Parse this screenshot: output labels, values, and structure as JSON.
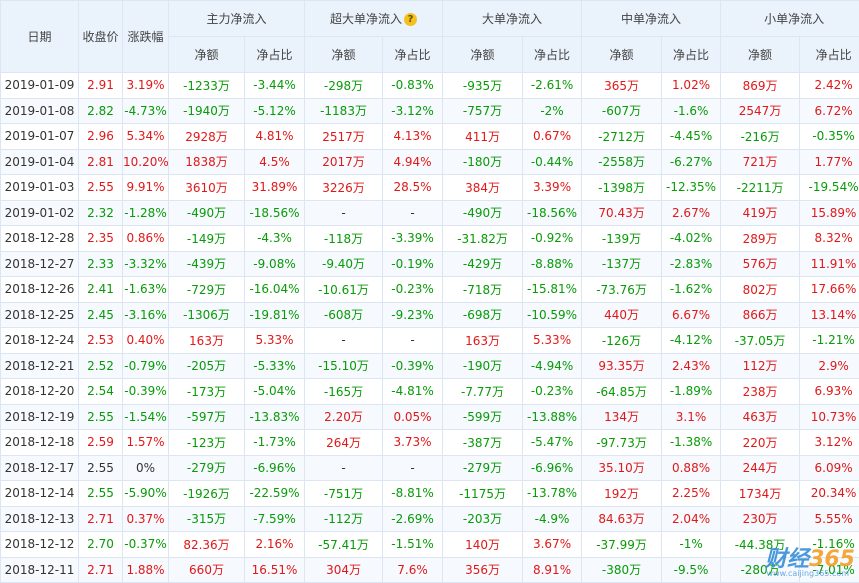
{
  "headers": {
    "date": "日期",
    "close": "收盘价",
    "change": "涨跌幅",
    "groups": [
      "主力净流入",
      "超大单净流入",
      "大单净流入",
      "中单净流入",
      "小单净流入"
    ],
    "help_glyph": "?",
    "sub_amount": "净额",
    "sub_ratio": "净占比"
  },
  "rows": [
    [
      "2019-01-09",
      "2.91",
      "3.19%",
      "-1233万",
      "-3.44%",
      "-298万",
      "-0.83%",
      "-935万",
      "-2.61%",
      "365万",
      "1.02%",
      "869万",
      "2.42%"
    ],
    [
      "2019-01-08",
      "2.82",
      "-4.73%",
      "-1940万",
      "-5.12%",
      "-1183万",
      "-3.12%",
      "-757万",
      "-2%",
      "-607万",
      "-1.6%",
      "2547万",
      "6.72%"
    ],
    [
      "2019-01-07",
      "2.96",
      "5.34%",
      "2928万",
      "4.81%",
      "2517万",
      "4.13%",
      "411万",
      "0.67%",
      "-2712万",
      "-4.45%",
      "-216万",
      "-0.35%"
    ],
    [
      "2019-01-04",
      "2.81",
      "10.20%",
      "1838万",
      "4.5%",
      "2017万",
      "4.94%",
      "-180万",
      "-0.44%",
      "-2558万",
      "-6.27%",
      "721万",
      "1.77%"
    ],
    [
      "2019-01-03",
      "2.55",
      "9.91%",
      "3610万",
      "31.89%",
      "3226万",
      "28.5%",
      "384万",
      "3.39%",
      "-1398万",
      "-12.35%",
      "-2211万",
      "-19.54%"
    ],
    [
      "2019-01-02",
      "2.32",
      "-1.28%",
      "-490万",
      "-18.56%",
      "-",
      "-",
      "-490万",
      "-18.56%",
      "70.43万",
      "2.67%",
      "419万",
      "15.89%"
    ],
    [
      "2018-12-28",
      "2.35",
      "0.86%",
      "-149万",
      "-4.3%",
      "-118万",
      "-3.39%",
      "-31.82万",
      "-0.92%",
      "-139万",
      "-4.02%",
      "289万",
      "8.32%"
    ],
    [
      "2018-12-27",
      "2.33",
      "-3.32%",
      "-439万",
      "-9.08%",
      "-9.40万",
      "-0.19%",
      "-429万",
      "-8.88%",
      "-137万",
      "-2.83%",
      "576万",
      "11.91%"
    ],
    [
      "2018-12-26",
      "2.41",
      "-1.63%",
      "-729万",
      "-16.04%",
      "-10.61万",
      "-0.23%",
      "-718万",
      "-15.81%",
      "-73.76万",
      "-1.62%",
      "802万",
      "17.66%"
    ],
    [
      "2018-12-25",
      "2.45",
      "-3.16%",
      "-1306万",
      "-19.81%",
      "-608万",
      "-9.23%",
      "-698万",
      "-10.59%",
      "440万",
      "6.67%",
      "866万",
      "13.14%"
    ],
    [
      "2018-12-24",
      "2.53",
      "0.40%",
      "163万",
      "5.33%",
      "-",
      "-",
      "163万",
      "5.33%",
      "-126万",
      "-4.12%",
      "-37.05万",
      "-1.21%"
    ],
    [
      "2018-12-21",
      "2.52",
      "-0.79%",
      "-205万",
      "-5.33%",
      "-15.10万",
      "-0.39%",
      "-190万",
      "-4.94%",
      "93.35万",
      "2.43%",
      "112万",
      "2.9%"
    ],
    [
      "2018-12-20",
      "2.54",
      "-0.39%",
      "-173万",
      "-5.04%",
      "-165万",
      "-4.81%",
      "-7.77万",
      "-0.23%",
      "-64.85万",
      "-1.89%",
      "238万",
      "6.93%"
    ],
    [
      "2018-12-19",
      "2.55",
      "-1.54%",
      "-597万",
      "-13.83%",
      "2.20万",
      "0.05%",
      "-599万",
      "-13.88%",
      "134万",
      "3.1%",
      "463万",
      "10.73%"
    ],
    [
      "2018-12-18",
      "2.59",
      "1.57%",
      "-123万",
      "-1.73%",
      "264万",
      "3.73%",
      "-387万",
      "-5.47%",
      "-97.73万",
      "-1.38%",
      "220万",
      "3.12%"
    ],
    [
      "2018-12-17",
      "2.55",
      "0%",
      "-279万",
      "-6.96%",
      "-",
      "-",
      "-279万",
      "-6.96%",
      "35.10万",
      "0.88%",
      "244万",
      "6.09%"
    ],
    [
      "2018-12-14",
      "2.55",
      "-5.90%",
      "-1926万",
      "-22.59%",
      "-751万",
      "-8.81%",
      "-1175万",
      "-13.78%",
      "192万",
      "2.25%",
      "1734万",
      "20.34%"
    ],
    [
      "2018-12-13",
      "2.71",
      "0.37%",
      "-315万",
      "-7.59%",
      "-112万",
      "-2.69%",
      "-203万",
      "-4.9%",
      "84.63万",
      "2.04%",
      "230万",
      "5.55%"
    ],
    [
      "2018-12-12",
      "2.70",
      "-0.37%",
      "82.36万",
      "2.16%",
      "-57.41万",
      "-1.51%",
      "140万",
      "3.67%",
      "-37.99万",
      "-1%",
      "-44.38万",
      "-1.16%"
    ],
    [
      "2018-12-11",
      "2.71",
      "1.88%",
      "660万",
      "16.51%",
      "304万",
      "7.6%",
      "356万",
      "8.91%",
      "-380万",
      "-9.5%",
      "-280万",
      "-7.01%"
    ]
  ],
  "colors": {
    "up": "#e01818",
    "down": "#079b07",
    "header_bg": "#eaf2fb",
    "border": "#dbe6f2"
  },
  "watermark": {
    "brand": "财经",
    "num": "365",
    "sub": "www.caijing365.com"
  }
}
